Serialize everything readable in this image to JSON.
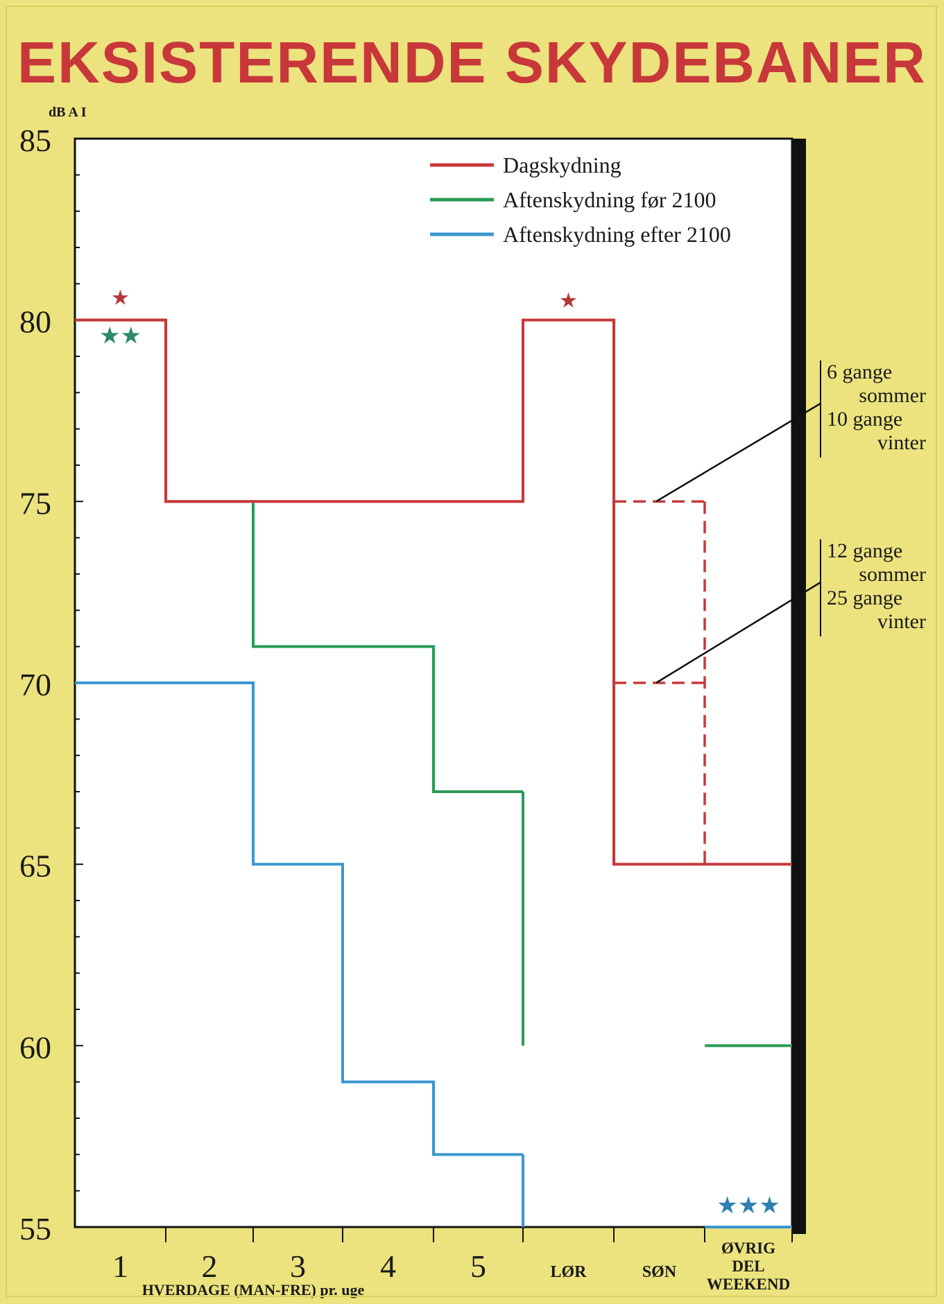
{
  "chart_data": {
    "type": "line",
    "title": "EKSISTERENDE SKYDEBANER",
    "ylabel": "dB A I",
    "xlabel": "HVERDAGE (MAN-FRE) pr. uge",
    "ylim": [
      55,
      85
    ],
    "yticks": [
      "85",
      "80",
      "75",
      "70",
      "65",
      "60",
      "55"
    ],
    "categories": [
      "1",
      "2",
      "3",
      "4",
      "5",
      "LØR",
      "SØN",
      "ØVRIG DEL WEEKEND"
    ],
    "category_labels": [
      [
        "1"
      ],
      [
        "2"
      ],
      [
        "3"
      ],
      [
        "4"
      ],
      [
        "5"
      ],
      [
        "LØR"
      ],
      [
        "SØN"
      ],
      [
        "ØVRIG",
        "DEL",
        "WEEKEND"
      ]
    ],
    "legend_position": "top-right",
    "series": [
      {
        "name": "Dagskydning",
        "color": "#c8373a",
        "values": [
          80,
          75,
          75,
          75,
          75,
          80,
          65,
          65
        ]
      },
      {
        "name": "Aftenskydning før 2100",
        "color": "#2a9a55",
        "values": [
          80,
          75,
          71,
          71,
          67,
          null,
          null,
          60
        ]
      },
      {
        "name": "Aftenskydning efter 2100",
        "color": "#3a97d0",
        "values": [
          70,
          70,
          65,
          59,
          57,
          null,
          null,
          55
        ]
      }
    ],
    "dashed_levels": {
      "series": "Dagskydning",
      "color": "#c8373a",
      "category": "SØN",
      "values": [
        75,
        70
      ]
    },
    "annotations": [
      {
        "lines": [
          "6 gange",
          "sommer",
          "10 gange",
          "vinter"
        ],
        "points_to": 75
      },
      {
        "lines": [
          "12 gange",
          "sommer",
          "25 gange",
          "vinter"
        ],
        "points_to": 70
      }
    ],
    "star_marks": [
      {
        "text": "★",
        "color": "#b5373a",
        "category": "1",
        "value": 80
      },
      {
        "text": "★★",
        "color": "#2d8a6a",
        "category": "1",
        "value": 80
      },
      {
        "text": "★",
        "color": "#b5373a",
        "category": "LØR",
        "value": 80
      },
      {
        "text": "★★★",
        "color": "#2f7fb0",
        "category": "ØVRIG DEL WEEKEND",
        "value": 55
      }
    ]
  }
}
